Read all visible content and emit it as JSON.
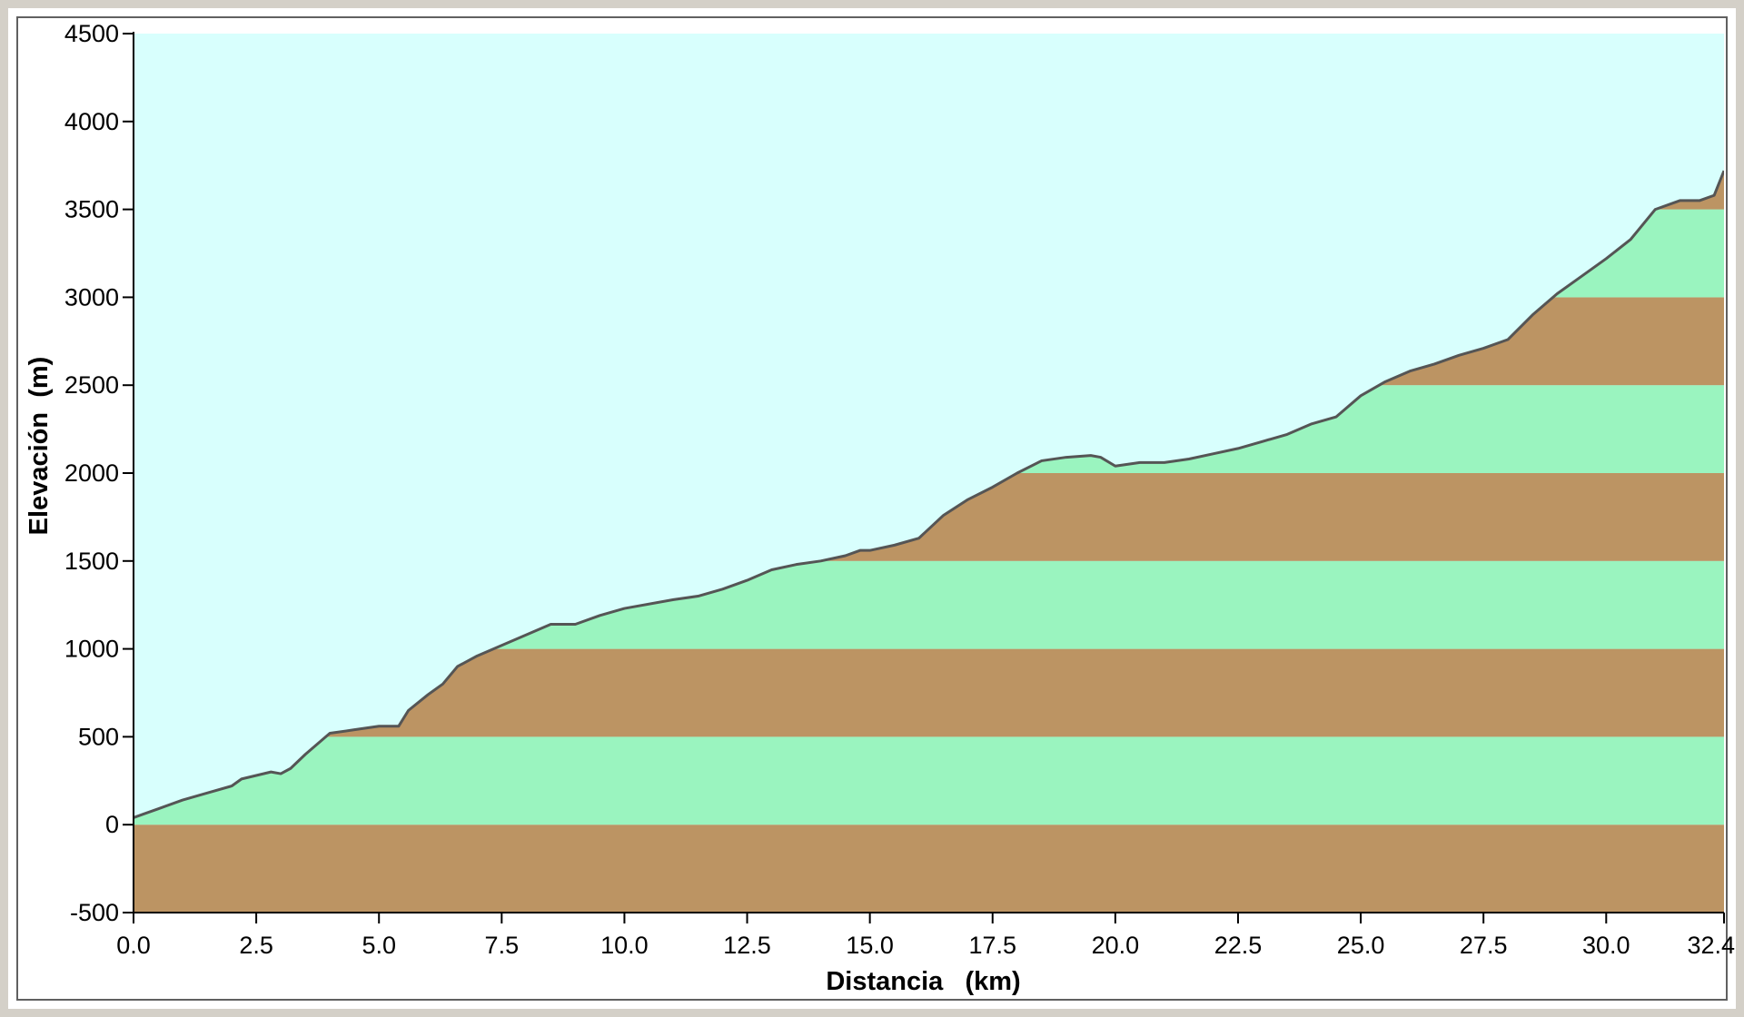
{
  "chart_data": {
    "type": "area",
    "title": "",
    "xlabel": "Distancia   (km)",
    "ylabel": "Elevación  (m)",
    "xlim": [
      0,
      32.4
    ],
    "ylim": [
      -500,
      4500
    ],
    "x_ticks": [
      "0.0",
      "2.5",
      "5.0",
      "7.5",
      "10.0",
      "12.5",
      "15.0",
      "17.5",
      "20.0",
      "22.5",
      "25.0",
      "27.5",
      "30.0",
      "32.4"
    ],
    "x_tick_values": [
      0,
      2.5,
      5,
      7.5,
      10,
      12.5,
      15,
      17.5,
      20,
      22.5,
      25,
      27.5,
      30,
      32.4
    ],
    "y_ticks": [
      "-500",
      "0",
      "500",
      "1000",
      "1500",
      "2000",
      "2500",
      "3000",
      "3500",
      "4000",
      "4500"
    ],
    "y_tick_values": [
      -500,
      0,
      500,
      1000,
      1500,
      2000,
      2500,
      3000,
      3500,
      4000,
      4500
    ],
    "elevation_bands": {
      "interval": 500,
      "colors": [
        "#bc9463",
        "#9af4bf"
      ]
    },
    "colors": {
      "sky": "#d8fffd",
      "profile_line": "#555555",
      "frame": "#d4d0c8"
    },
    "x": [
      0,
      0.2,
      0.5,
      1.0,
      1.5,
      2.0,
      2.2,
      2.5,
      2.8,
      3.0,
      3.2,
      3.5,
      4.0,
      4.5,
      5.0,
      5.4,
      5.6,
      6.0,
      6.3,
      6.6,
      7.0,
      7.5,
      8.0,
      8.5,
      9.0,
      9.5,
      10.0,
      11.0,
      11.5,
      12.0,
      12.5,
      13.0,
      13.5,
      14.0,
      14.5,
      14.8,
      15.0,
      15.5,
      16.0,
      16.5,
      17.0,
      17.5,
      18.0,
      18.5,
      19.0,
      19.5,
      19.7,
      20.0,
      20.5,
      21.0,
      21.5,
      22.0,
      22.5,
      23.0,
      23.5,
      24.0,
      24.5,
      25.0,
      25.5,
      26.0,
      26.5,
      27.0,
      27.5,
      28.0,
      28.5,
      29.0,
      29.5,
      30.0,
      30.5,
      31.0,
      31.5,
      31.9,
      32.2,
      32.4
    ],
    "y": [
      40,
      60,
      90,
      140,
      180,
      220,
      260,
      280,
      300,
      290,
      320,
      400,
      520,
      540,
      560,
      560,
      650,
      740,
      800,
      900,
      960,
      1020,
      1080,
      1140,
      1140,
      1190,
      1230,
      1280,
      1300,
      1340,
      1390,
      1450,
      1480,
      1500,
      1530,
      1560,
      1560,
      1590,
      1630,
      1760,
      1850,
      1920,
      2000,
      2070,
      2090,
      2100,
      2090,
      2040,
      2060,
      2060,
      2080,
      2110,
      2140,
      2180,
      2220,
      2280,
      2320,
      2440,
      2520,
      2580,
      2620,
      2670,
      2710,
      2760,
      2900,
      3020,
      3120,
      3220,
      3330,
      3500,
      3550,
      3550,
      3580,
      3720
    ]
  }
}
